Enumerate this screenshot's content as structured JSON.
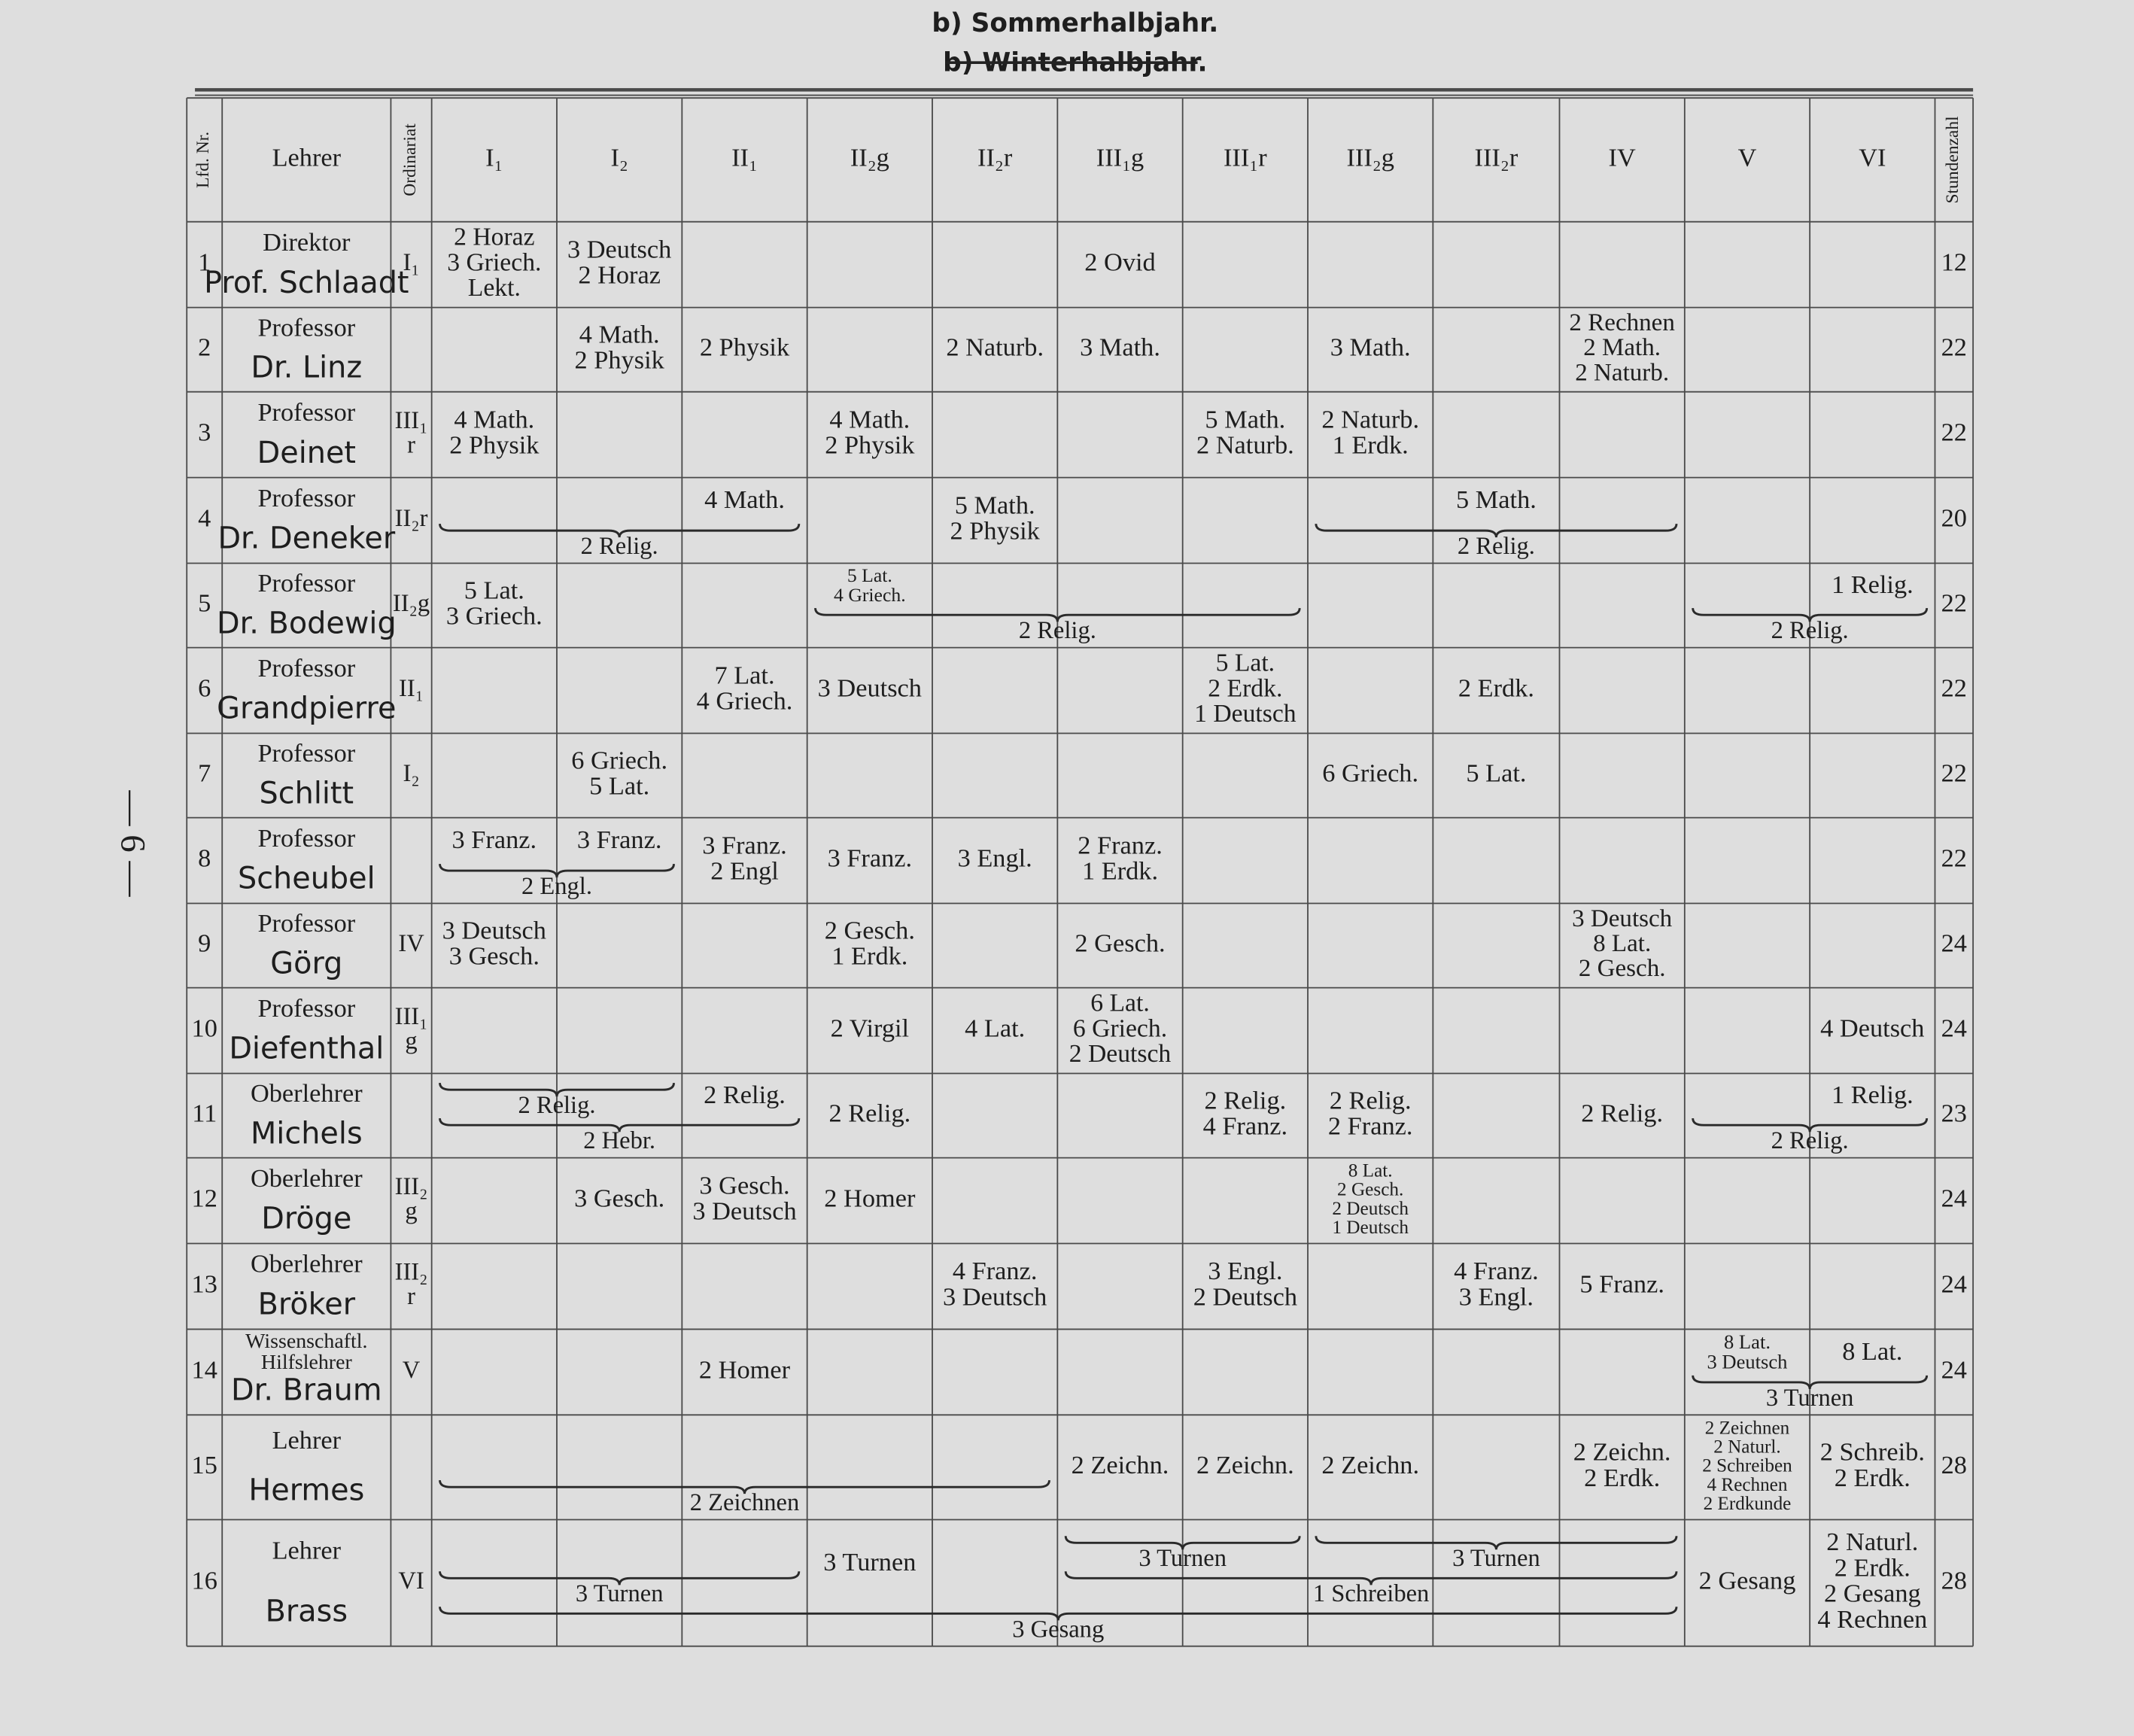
{
  "header": {
    "title": "b) Sommerhalbjahr.",
    "struck": "b) Winterhalbjahr."
  },
  "page_number": "— 6 —",
  "columns": [
    "Lfd. Nr.",
    "Lehrer",
    "Ordinariat",
    "I₁",
    "I₂",
    "II₁",
    "II₂g",
    "II₂r",
    "III₁g",
    "III₁r",
    "III₂g",
    "III₂r",
    "IV",
    "V",
    "VI",
    "Stundenzahl"
  ],
  "rows": [
    {
      "no": 1,
      "title": [
        "Direktor"
      ],
      "name": "Prof. Schlaadt",
      "ord": [
        "I₁"
      ],
      "hours": 12,
      "cells": [
        [
          "2 Horaz",
          "3 Griech.",
          "Lekt."
        ],
        [
          "3 Deutsch",
          "2 Horaz"
        ],
        null,
        null,
        null,
        [
          "2 Ovid"
        ],
        null,
        null,
        null,
        null,
        null,
        null
      ],
      "spans": []
    },
    {
      "no": 2,
      "title": [
        "Professor"
      ],
      "name": "Dr. Linz",
      "ord": null,
      "hours": 22,
      "cells": [
        null,
        [
          "4 Math.",
          "2 Physik"
        ],
        [
          "2 Physik"
        ],
        null,
        [
          "2 Naturb."
        ],
        [
          "3 Math."
        ],
        null,
        [
          "3 Math."
        ],
        null,
        [
          "2 Rechnen",
          "2 Math.",
          "2 Naturb."
        ],
        null,
        null
      ],
      "spans": []
    },
    {
      "no": 3,
      "title": [
        "Professor"
      ],
      "name": "Deinet",
      "ord": [
        "III₁",
        "r"
      ],
      "hours": 22,
      "cells": [
        [
          "4 Math.",
          "2 Physik"
        ],
        null,
        null,
        [
          "4 Math.",
          "2 Physik"
        ],
        null,
        null,
        [
          "5 Math.",
          "2 Naturb."
        ],
        [
          "2 Naturb.",
          "1 Erdk."
        ],
        null,
        null,
        null,
        null
      ],
      "spans": []
    },
    {
      "no": 4,
      "title": [
        "Professor"
      ],
      "name": "Dr. Deneker",
      "ord": [
        "II₂r"
      ],
      "hours": 20,
      "cells": [
        null,
        null,
        [
          "4 Math."
        ],
        null,
        [
          "5 Math.",
          "2 Physik"
        ],
        null,
        null,
        null,
        [
          "5 Math."
        ],
        null,
        null,
        null
      ],
      "spans": [
        {
          "from": 0,
          "to": 2,
          "text": "2 Relig."
        },
        {
          "from": 7,
          "to": 9,
          "text": "2 Relig."
        }
      ]
    },
    {
      "no": 5,
      "title": [
        "Professor"
      ],
      "name": "Dr. Bodewig",
      "ord": [
        "II₂g"
      ],
      "hours": 22,
      "cells": [
        [
          "5 Lat.",
          "3 Griech."
        ],
        null,
        null,
        [
          "5 Lat.",
          "4 Griech."
        ],
        null,
        null,
        null,
        null,
        null,
        null,
        null,
        [
          "1 Relig."
        ]
      ],
      "spans": [
        {
          "from": 3,
          "to": 6,
          "text": "2 Relig."
        },
        {
          "from": 10,
          "to": 11,
          "text": "2 Relig."
        }
      ]
    },
    {
      "no": 6,
      "title": [
        "Professor"
      ],
      "name": "Grandpierre",
      "ord": [
        "II₁"
      ],
      "hours": 22,
      "cells": [
        null,
        null,
        [
          "7 Lat.",
          "4 Griech."
        ],
        [
          "3 Deutsch"
        ],
        null,
        null,
        [
          "5 Lat.",
          "2 Erdk.",
          "1 Deutsch"
        ],
        null,
        [
          "2 Erdk."
        ],
        null,
        null,
        null
      ],
      "spans": []
    },
    {
      "no": 7,
      "title": [
        "Professor"
      ],
      "name": "Schlitt",
      "ord": [
        "I₂"
      ],
      "hours": 22,
      "cells": [
        null,
        [
          "6 Griech.",
          "5 Lat."
        ],
        null,
        null,
        null,
        null,
        null,
        [
          "6 Griech."
        ],
        [
          "5 Lat."
        ],
        null,
        null,
        null
      ],
      "spans": []
    },
    {
      "no": 8,
      "title": [
        "Professor"
      ],
      "name": "Scheubel",
      "ord": null,
      "hours": 22,
      "cells": [
        [
          "3 Franz."
        ],
        [
          "3 Franz."
        ],
        [
          "3 Franz.",
          "2 Engl"
        ],
        [
          "3 Franz."
        ],
        [
          "3 Engl."
        ],
        [
          "2 Franz.",
          "1 Erdk."
        ],
        null,
        null,
        null,
        null,
        null,
        null
      ],
      "spans": [
        {
          "from": 0,
          "to": 1,
          "text": "2 Engl."
        }
      ]
    },
    {
      "no": 9,
      "title": [
        "Professor"
      ],
      "name": "Görg",
      "ord": [
        "IV"
      ],
      "hours": 24,
      "cells": [
        [
          "3 Deutsch",
          "3 Gesch."
        ],
        null,
        null,
        [
          "2 Gesch.",
          "1 Erdk."
        ],
        null,
        [
          "2 Gesch."
        ],
        null,
        null,
        null,
        [
          "3 Deutsch",
          "8 Lat.",
          "2 Gesch."
        ],
        null,
        null
      ],
      "spans": []
    },
    {
      "no": 10,
      "title": [
        "Professor"
      ],
      "name": "Diefenthal",
      "ord": [
        "III₁",
        "g"
      ],
      "hours": 24,
      "cells": [
        null,
        null,
        null,
        [
          "2 Virgil"
        ],
        [
          "4 Lat."
        ],
        [
          "6 Lat.",
          "6 Griech.",
          "2 Deutsch"
        ],
        null,
        null,
        null,
        null,
        null,
        [
          "4 Deutsch"
        ]
      ],
      "spans": []
    },
    {
      "no": 11,
      "title": [
        "Oberlehrer"
      ],
      "name": "Michels",
      "ord": null,
      "hours": 23,
      "cells": [
        null,
        null,
        [
          "2 Relig."
        ],
        [
          "2 Relig."
        ],
        null,
        null,
        [
          "2 Relig.",
          "4 Franz."
        ],
        [
          "2 Relig.",
          "2 Franz."
        ],
        null,
        [
          "2 Relig."
        ],
        null,
        [
          "1 Relig."
        ]
      ],
      "spans": [
        {
          "from": 0,
          "to": 1,
          "text": "2 Relig."
        },
        {
          "from": 0,
          "to": 2,
          "text": "2 Hebr."
        },
        {
          "from": 10,
          "to": 11,
          "text": "2 Relig."
        }
      ]
    },
    {
      "no": 12,
      "title": [
        "Oberlehrer"
      ],
      "name": "Dröge",
      "ord": [
        "III₂",
        "g"
      ],
      "hours": 24,
      "cells": [
        null,
        [
          "3 Gesch."
        ],
        [
          "3 Gesch.",
          "3 Deutsch"
        ],
        [
          "2 Homer"
        ],
        null,
        null,
        null,
        [
          "8 Lat.",
          "2 Gesch.",
          "2 Deutsch",
          "1 Deutsch"
        ],
        null,
        null,
        null,
        null
      ],
      "spans": []
    },
    {
      "no": 13,
      "title": [
        "Oberlehrer"
      ],
      "name": "Bröker",
      "ord": [
        "III₂",
        "r"
      ],
      "hours": 24,
      "cells": [
        null,
        null,
        null,
        null,
        [
          "4 Franz.",
          "3 Deutsch"
        ],
        null,
        [
          "3 Engl.",
          "2 Deutsch"
        ],
        null,
        [
          "4 Franz.",
          "3 Engl."
        ],
        [
          "5 Franz."
        ],
        null,
        null
      ],
      "spans": []
    },
    {
      "no": 14,
      "title": [
        "Wissenschaftl.",
        "Hilfslehrer"
      ],
      "name": "Dr. Braum",
      "ord": [
        "V"
      ],
      "hours": 24,
      "cells": [
        null,
        null,
        [
          "2 Homer"
        ],
        null,
        null,
        null,
        null,
        null,
        null,
        null,
        [
          "8 Lat.",
          "3 Deutsch"
        ],
        [
          "8 Lat."
        ]
      ],
      "spans": [
        {
          "from": 10,
          "to": 11,
          "text": "3 Turnen"
        }
      ]
    },
    {
      "no": 15,
      "title": [
        "Lehrer"
      ],
      "name": "Hermes",
      "ord": null,
      "hours": 28,
      "cells": [
        null,
        null,
        null,
        null,
        null,
        [
          "2 Zeichn."
        ],
        [
          "2 Zeichn."
        ],
        [
          "2 Zeichn."
        ],
        null,
        [
          "2 Zeichn.",
          "2 Erdk."
        ],
        [
          "2 Zeichnen",
          "2 Naturl.",
          "2 Schreiben",
          "4 Rechnen",
          "2 Erdkunde"
        ],
        [
          "2 Schreib.",
          "2 Erdk."
        ]
      ],
      "spans": [
        {
          "from": 0,
          "to": 4,
          "text": "2 Zeichnen"
        }
      ]
    },
    {
      "no": 16,
      "title": [
        "Lehrer"
      ],
      "name": "Brass",
      "ord": [
        "VI"
      ],
      "hours": 28,
      "cells": [
        null,
        null,
        null,
        [
          "3 Turnen"
        ],
        null,
        null,
        null,
        null,
        null,
        null,
        [
          "2 Gesang"
        ],
        [
          "2 Naturl.",
          "2 Erdk.",
          "2 Gesang",
          "4 Rechnen"
        ]
      ],
      "spans": [
        {
          "from": 0,
          "to": 2,
          "text": "3 Turnen"
        },
        {
          "from": 5,
          "to": 6,
          "text": "3 Turnen"
        },
        {
          "from": 7,
          "to": 9,
          "text": "3 Turnen"
        },
        {
          "from": 5,
          "to": 9,
          "text": "1 Schreiben"
        },
        {
          "from": 0,
          "to": 9,
          "text": "3 Gesang"
        }
      ]
    }
  ]
}
